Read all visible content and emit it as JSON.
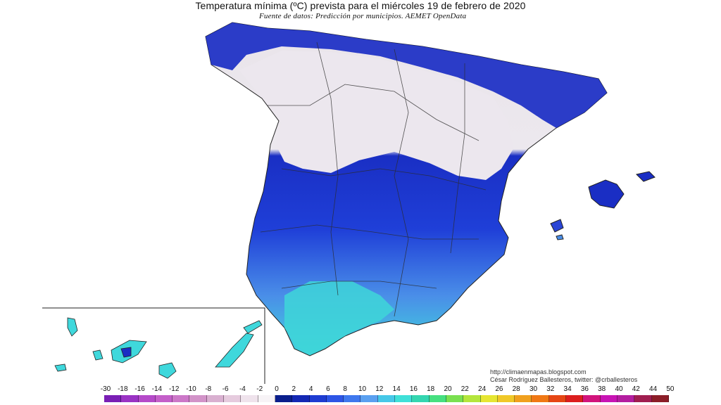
{
  "header": {
    "title": "Temperatura mínima (ºC) prevista para el miércoles 19 de febrero de 2020",
    "subtitle": "Fuente de datos: Predicción por municipios. AEMET OpenData"
  },
  "credits": {
    "url": "http://climaenmapas.blogspot.com",
    "author": "César Rodríguez Ballesteros, twitter: @crballesteros"
  },
  "legend": {
    "ticks": [
      "-30",
      "-18",
      "-16",
      "-14",
      "-12",
      "-10",
      "-8",
      "-6",
      "-4",
      "-2",
      "0",
      "2",
      "4",
      "6",
      "8",
      "10",
      "12",
      "14",
      "16",
      "18",
      "20",
      "22",
      "24",
      "26",
      "28",
      "30",
      "32",
      "34",
      "36",
      "38",
      "40",
      "42",
      "44",
      "50"
    ],
    "colors": [
      "#7a1fb5",
      "#9a33c4",
      "#b54ac9",
      "#c45fc9",
      "#cc78c8",
      "#d293c8",
      "#d9b0d0",
      "#e6cbde",
      "#efe3ec",
      "#f7f3f6",
      "#0a1e8c",
      "#1428b4",
      "#1e3cd2",
      "#2d55e6",
      "#3f78ee",
      "#5aa0f0",
      "#46c8e8",
      "#3fe0d8",
      "#34d6b0",
      "#46e080",
      "#7ae050",
      "#b4e63c",
      "#e6e632",
      "#f0c828",
      "#f0a01e",
      "#f07814",
      "#e64614",
      "#dc1e1e",
      "#d2147c",
      "#c814b4",
      "#b41ea0",
      "#a01e50",
      "#8c1e28"
    ]
  },
  "map": {
    "regions": [
      "peninsula",
      "balearic-islands",
      "canary-islands"
    ]
  }
}
